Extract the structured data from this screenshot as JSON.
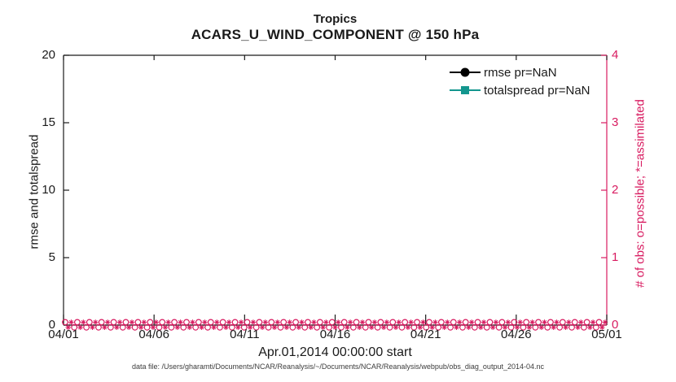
{
  "figure": {
    "title_line1": "Tropics",
    "title_line2": "ACARS_U_WIND_COMPONENT @ 150 hPa",
    "footnote": "data file: /Users/gharamti/Documents/NCAR/Reanalysis/~/Documents/NCAR/Reanalysis/webpub/obs_diag_output_2014-04.nc"
  },
  "legend": {
    "items": [
      {
        "label": "rmse pr=NaN",
        "marker": "circle",
        "color": "#000000"
      },
      {
        "label": "totalspread pr=NaN",
        "marker": "square",
        "color": "#13968e"
      }
    ]
  },
  "chart_data": {
    "type": "line",
    "title": "Tropics",
    "subtitle": "ACARS_U_WIND_COMPONENT @ 150 hPa",
    "xlabel": "Apr.01,2014 00:00:00 start",
    "x_tick_labels": [
      "04/01",
      "04/06",
      "04/11",
      "04/16",
      "04/21",
      "04/26",
      "05/01"
    ],
    "left_axis": {
      "label": "rmse and totalspread",
      "ticks": [
        "0",
        "5",
        "10",
        "15",
        "20"
      ],
      "range": [
        0,
        20
      ],
      "color": "#1a1a1a"
    },
    "right_axis": {
      "label": "# of obs: o=possible; *=assimilated",
      "ticks": [
        "0",
        "1",
        "2",
        "3",
        "4"
      ],
      "range": [
        0,
        4
      ],
      "color": "#d81b60"
    },
    "grid": "off",
    "legend_position": "top-right-inside",
    "series": [
      {
        "name": "rmse pr=NaN",
        "axis": "left",
        "color": "#000000",
        "marker": "o",
        "values": null
      },
      {
        "name": "totalspread pr=NaN",
        "axis": "left",
        "color": "#13968e",
        "marker": "s",
        "values": null
      },
      {
        "name": "possible obs (o)",
        "axis": "right",
        "color": "#d81b60",
        "marker": "o",
        "constant_value": 0,
        "x_span": [
          "04/01",
          "05/01"
        ]
      },
      {
        "name": "assimilated obs (*)",
        "axis": "right",
        "color": "#d81b60",
        "marker": "*",
        "constant_value": 0,
        "x_span": [
          "04/01",
          "05/01"
        ]
      }
    ],
    "obs_band": {
      "color": "#d81b60",
      "y_value": 0,
      "glyph_columns": 89,
      "rows": 2
    }
  }
}
